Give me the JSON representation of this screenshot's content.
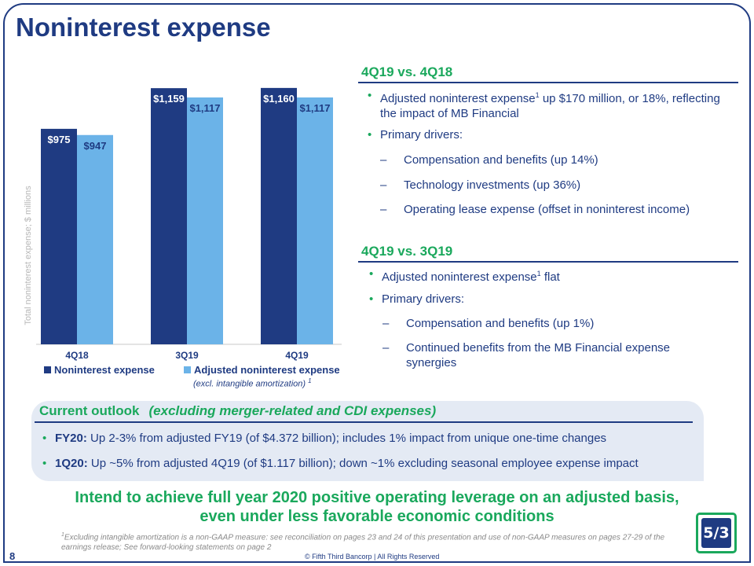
{
  "title": "Noninterest expense",
  "chart_data": {
    "type": "bar",
    "categories": [
      "4Q18",
      "3Q19",
      "4Q19"
    ],
    "series": [
      {
        "name": "Noninterest expense",
        "values": [
          975,
          1159,
          1160
        ],
        "labels": [
          "$975",
          "$1,159",
          "$1,160"
        ],
        "color": "#1f3b82"
      },
      {
        "name": "Adjusted noninterest expense",
        "values": [
          947,
          1117,
          1117
        ],
        "labels": [
          "$947",
          "$1,117",
          "$1,117"
        ],
        "color": "#6bb3e8"
      }
    ],
    "ylabel": "Total noninterest expense; $ millions",
    "ylim": [
      0,
      1220
    ],
    "legend_note": "(excl. intangible amortization)",
    "legend_note_sup": "1"
  },
  "sections": [
    {
      "heading": "4Q19 vs. 4Q18",
      "bullets": [
        {
          "pre": "Adjusted noninterest expense",
          "sup": "1",
          "post": " up $170 million, or 18%, reflecting the impact of MB Financial"
        },
        {
          "pre": "Primary drivers:",
          "sup": "",
          "post": ""
        }
      ],
      "dashes": [
        "Compensation and benefits (up 14%)",
        "Technology investments (up 36%)",
        "Operating lease expense (offset in noninterest income)"
      ]
    },
    {
      "heading": "4Q19 vs. 3Q19",
      "bullets": [
        {
          "pre": "Adjusted noninterest expense",
          "sup": "1",
          "post": " flat"
        },
        {
          "pre": "Primary drivers:",
          "sup": "",
          "post": ""
        }
      ],
      "dashes": [
        "Compensation and benefits (up 1%)",
        "Continued benefits from the MB Financial expense synergies"
      ]
    }
  ],
  "outlook": {
    "heading": "Current outlook",
    "subheading": "(excluding merger-related and CDI expenses)",
    "items": [
      {
        "label": "FY20:",
        "text": " Up 2-3%  from adjusted FY19 (of $4.372 billion); includes 1% impact from unique one-time changes"
      },
      {
        "label": "1Q20:",
        "text": " Up ~5% from adjusted 4Q19 (of $1.117 billion); down ~1% excluding seasonal employee expense impact"
      }
    ]
  },
  "headline_line1": "Intend to achieve full year 2020 positive operating leverage on an adjusted basis,",
  "headline_line2": "even under less favorable economic conditions",
  "footnote_sup": "1",
  "footnote": "Excluding intangible amortization is a non-GAAP measure: see reconciliation on pages 23 and 24 of this presentation and use of non-GAAP measures on pages 27-29 of the earnings release; See forward-looking statements on page 2",
  "page_number": "8",
  "copyright": "© Fifth Third Bancorp | All Rights Reserved",
  "logo_text": "5/3",
  "colors": {
    "navy": "#1f3b82",
    "green": "#1aa85c",
    "light_blue": "#6bb3e8"
  }
}
